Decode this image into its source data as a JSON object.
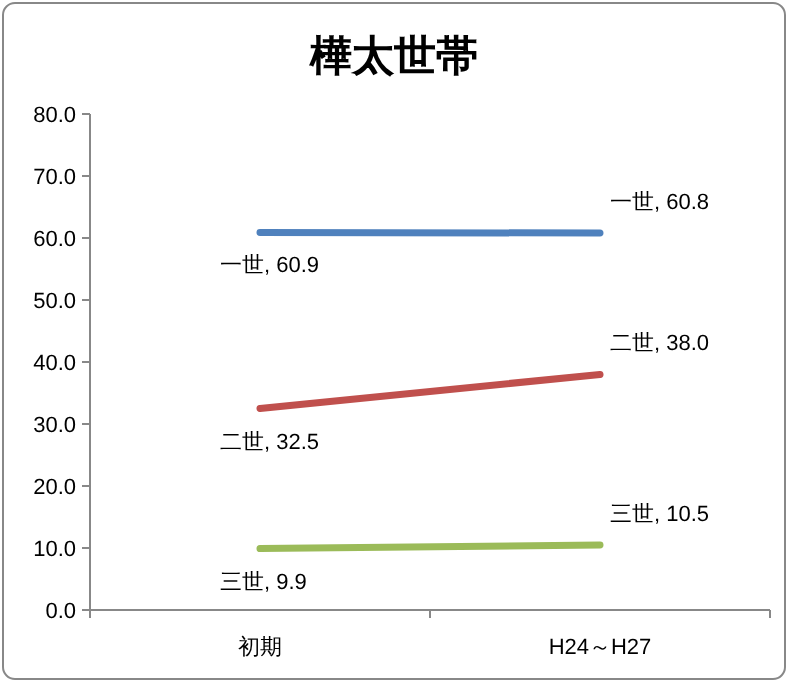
{
  "chart_data": {
    "type": "line",
    "title": "樺太世帯",
    "categories": [
      "初期",
      "H24～H27"
    ],
    "series": [
      {
        "name": "一世",
        "color": "#4f81bd",
        "values": [
          60.9,
          60.8
        ],
        "value_labels": [
          ", 60.9",
          ", 60.8"
        ]
      },
      {
        "name": "二世",
        "color": "#c0504d",
        "values": [
          32.5,
          38.0
        ],
        "value_labels": [
          ", 32.5",
          ", 38.0"
        ]
      },
      {
        "name": "三世",
        "color": "#9bbb59",
        "values": [
          9.9,
          10.5
        ],
        "value_labels": [
          ", 9.9",
          ", 10.5"
        ]
      }
    ],
    "ylim": [
      0,
      80
    ],
    "yticks": [
      {
        "value": 0,
        "label": "0.0"
      },
      {
        "value": 10,
        "label": "10.0"
      },
      {
        "value": 20,
        "label": "20.0"
      },
      {
        "value": 30,
        "label": "30.0"
      },
      {
        "value": 40,
        "label": "40.0"
      },
      {
        "value": 50,
        "label": "50.0"
      },
      {
        "value": 60,
        "label": "60.0"
      },
      {
        "value": 70,
        "label": "70.0"
      },
      {
        "value": 80,
        "label": "80.0"
      }
    ],
    "grid": false,
    "marker": "none",
    "line_style": "solid"
  }
}
